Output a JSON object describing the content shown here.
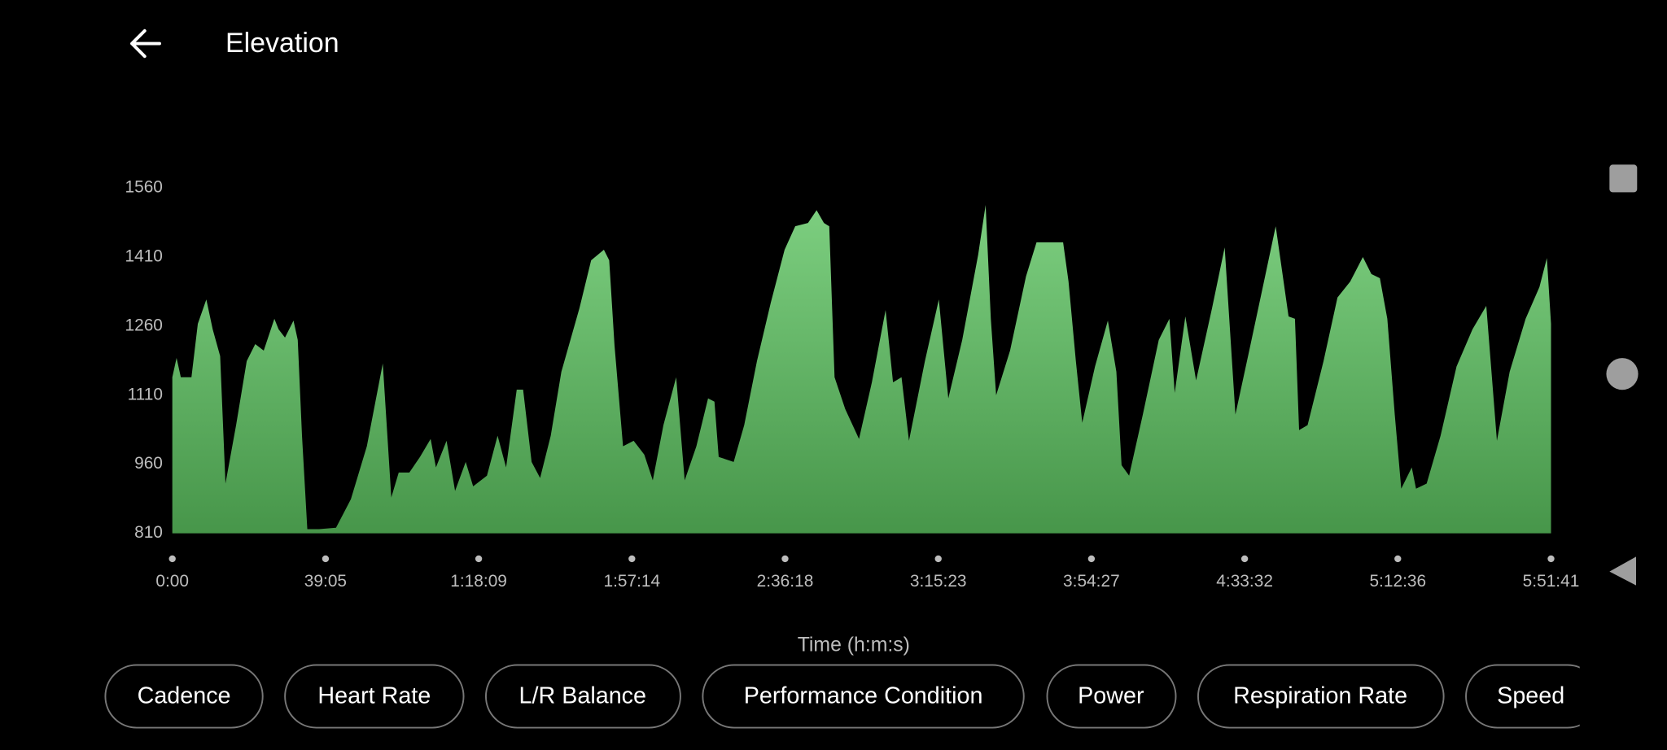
{
  "header": {
    "title": "Elevation"
  },
  "chart_data": {
    "type": "area",
    "x_label": "Time (h:m:s)",
    "color": "#66bb6a",
    "xlim": [
      0,
      21101
    ],
    "ylim": [
      810,
      1560
    ],
    "yticks": [
      810,
      960,
      1110,
      1260,
      1410,
      1560
    ],
    "xticks": [
      {
        "value": 0,
        "label": "0:00"
      },
      {
        "value": 2345,
        "label": "39:05"
      },
      {
        "value": 4689,
        "label": "1:18:09"
      },
      {
        "value": 7034,
        "label": "1:57:14"
      },
      {
        "value": 9378,
        "label": "2:36:18"
      },
      {
        "value": 11723,
        "label": "3:15:23"
      },
      {
        "value": 14067,
        "label": "3:54:27"
      },
      {
        "value": 16412,
        "label": "4:33:32"
      },
      {
        "value": 18756,
        "label": "5:12:36"
      },
      {
        "value": 21101,
        "label": "5:51:41"
      }
    ],
    "x": [
      0,
      65,
      130,
      293,
      390,
      521,
      618,
      732,
      813,
      976,
      1139,
      1269,
      1399,
      1562,
      1627,
      1725,
      1855,
      1920,
      1985,
      2066,
      2245,
      2506,
      2733,
      2977,
      3221,
      3352,
      3466,
      3628,
      3791,
      3954,
      4035,
      4198,
      4328,
      4491,
      4604,
      4816,
      4979,
      5109,
      5271,
      5369,
      5499,
      5629,
      5792,
      5955,
      6231,
      6410,
      6606,
      6687,
      6768,
      6898,
      7061,
      7224,
      7354,
      7517,
      7712,
      7842,
      8021,
      8200,
      8298,
      8363,
      8591,
      8753,
      8948,
      9160,
      9371,
      9534,
      9729,
      9860,
      9973,
      10055,
      10136,
      10299,
      10510,
      10706,
      10917,
      11031,
      11161,
      11275,
      11519,
      11731,
      11877,
      12089,
      12333,
      12447,
      12528,
      12609,
      12821,
      13065,
      13227,
      13471,
      13634,
      13716,
      13829,
      13927,
      14122,
      14318,
      14448,
      14529,
      14643,
      14854,
      15098,
      15261,
      15342,
      15505,
      15668,
      15912,
      16107,
      16270,
      16482,
      16725,
      16888,
      17084,
      17181,
      17246,
      17376,
      17620,
      17832,
      18027,
      18222,
      18352,
      18482,
      18596,
      18710,
      18808,
      18970,
      19035,
      19198,
      19410,
      19654,
      19898,
      20110,
      20273,
      20468,
      20712,
      20923,
      21037,
      21101
    ],
    "values": [
      1149,
      1191,
      1149,
      1149,
      1265,
      1318,
      1253,
      1195,
      918,
      1045,
      1184,
      1221,
      1207,
      1276,
      1253,
      1235,
      1272,
      1230,
      1022,
      819,
      819,
      822,
      884,
      999,
      1179,
      888,
      942,
      942,
      976,
      1015,
      953,
      1011,
      902,
      965,
      912,
      935,
      1022,
      953,
      1122,
      1122,
      965,
      930,
      1022,
      1161,
      1299,
      1403,
      1426,
      1403,
      1218,
      999,
      1011,
      981,
      925,
      1045,
      1149,
      925,
      999,
      1103,
      1096,
      976,
      965,
      1045,
      1184,
      1311,
      1426,
      1477,
      1484,
      1512,
      1484,
      1477,
      1149,
      1080,
      1015,
      1138,
      1295,
      1138,
      1149,
      1011,
      1184,
      1318,
      1103,
      1230,
      1415,
      1523,
      1276,
      1110,
      1207,
      1368,
      1442,
      1442,
      1442,
      1357,
      1184,
      1050,
      1172,
      1272,
      1161,
      958,
      935,
      1068,
      1230,
      1276,
      1115,
      1281,
      1142,
      1299,
      1431,
      1068,
      1207,
      1368,
      1477,
      1281,
      1276,
      1034,
      1045,
      1184,
      1322,
      1357,
      1410,
      1373,
      1364,
      1276,
      1068,
      907,
      953,
      907,
      918,
      1022,
      1172,
      1253,
      1304,
      1011,
      1161,
      1276,
      1345,
      1408,
      1265
    ]
  },
  "chips": [
    "Cadence",
    "Heart Rate",
    "L/R Balance",
    "Performance Condition",
    "Power",
    "Respiration Rate",
    "Speed"
  ]
}
